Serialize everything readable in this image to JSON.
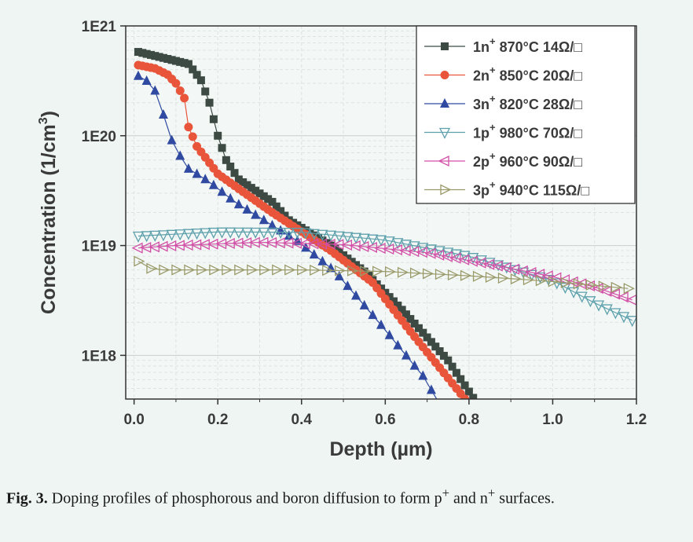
{
  "chart_data": {
    "type": "scatter",
    "xlabel": "Depth (µm)",
    "ylabel_main": "Concentration (1/cm",
    "ylabel_sup": "3",
    "ylabel_close": ")",
    "yscale": "log",
    "xlim": [
      -0.02,
      1.2
    ],
    "ylim": [
      4e+17,
      1e+21
    ],
    "xticks": [
      0.0,
      0.2,
      0.4,
      0.6,
      0.8,
      1.0,
      1.2
    ],
    "xtick_labels": [
      "0.0",
      "0.2",
      "0.4",
      "0.6",
      "0.8",
      "1.0",
      "1.2"
    ],
    "yticks": [
      1e+18,
      1e+19,
      1e+20,
      1e+21
    ],
    "ytick_labels": [
      "1E18",
      "1E19",
      "1E20",
      "1E21"
    ],
    "grid": true,
    "legend_position": "top-right",
    "series": [
      {
        "name": "1n",
        "sup": "+",
        "temp": "870°C",
        "sheet": "14Ω/□",
        "color": "#3d4a44",
        "marker": "square",
        "step": 0.01,
        "points": [
          [
            0.01,
            5.8e+20
          ],
          [
            0.1,
            4.8e+20
          ],
          [
            0.13,
            4.5e+20
          ],
          [
            0.16,
            3.2e+20
          ],
          [
            0.18,
            2e+20
          ],
          [
            0.2,
            1e+20
          ],
          [
            0.22,
            6e+19
          ],
          [
            0.25,
            4e+19
          ],
          [
            0.33,
            2.5e+19
          ],
          [
            0.37,
            1.7e+19
          ],
          [
            0.47,
            1e+19
          ],
          [
            0.55,
            5.8e+18
          ],
          [
            0.64,
            2.6e+18
          ],
          [
            0.75,
            9e+17
          ],
          [
            0.82,
            3.6e+17
          ]
        ]
      },
      {
        "name": "2n",
        "sup": "+",
        "temp": "850°C",
        "sheet": "20Ω/□",
        "color": "#e8553a",
        "marker": "circle",
        "step": 0.01,
        "points": [
          [
            0.01,
            4.4e+20
          ],
          [
            0.05,
            4.1e+20
          ],
          [
            0.08,
            3.6e+20
          ],
          [
            0.1,
            3e+20
          ],
          [
            0.12,
            2.2e+20
          ],
          [
            0.13,
            1.2e+20
          ],
          [
            0.15,
            8e+19
          ],
          [
            0.2,
            4.5e+19
          ],
          [
            0.24,
            3.5e+19
          ],
          [
            0.33,
            2e+19
          ],
          [
            0.38,
            1.5e+19
          ],
          [
            0.47,
            9e+18
          ],
          [
            0.57,
            4.6e+18
          ],
          [
            0.66,
            1.65e+18
          ],
          [
            0.77,
            5e+17
          ],
          [
            0.8,
            3.6e+17
          ]
        ]
      },
      {
        "name": "3n",
        "sup": "+",
        "temp": "820°C",
        "sheet": "28Ω/□",
        "color": "#2f4aa0",
        "marker": "triangle-up",
        "step": 0.02,
        "points": [
          [
            0.01,
            3.5e+20
          ],
          [
            0.04,
            3e+20
          ],
          [
            0.06,
            2.2e+20
          ],
          [
            0.08,
            1.1e+20
          ],
          [
            0.1,
            7.5e+19
          ],
          [
            0.13,
            5e+19
          ],
          [
            0.18,
            3.8e+19
          ],
          [
            0.24,
            2.5e+19
          ],
          [
            0.3,
            1.8e+19
          ],
          [
            0.39,
            1.1e+19
          ],
          [
            0.48,
            5.8e+18
          ],
          [
            0.58,
            2.1e+18
          ],
          [
            0.69,
            6.5e+17
          ],
          [
            0.73,
            3.6e+17
          ]
        ]
      },
      {
        "name": "1p",
        "sup": "+",
        "temp": "980°C",
        "sheet": "70Ω/□",
        "color": "#5da0ac",
        "marker": "triangle-down",
        "step": 0.02,
        "points": [
          [
            0.01,
            1.22e+19
          ],
          [
            0.2,
            1.33e+19
          ],
          [
            0.4,
            1.32e+19
          ],
          [
            0.6,
            1.12e+19
          ],
          [
            0.8,
            8e+18
          ],
          [
            1.0,
            4.8e+18
          ],
          [
            1.1,
            3e+18
          ],
          [
            1.2,
            2e+18
          ]
        ]
      },
      {
        "name": "2p",
        "sup": "+",
        "temp": "960°C",
        "sheet": "90Ω/□",
        "color": "#d24fa6",
        "marker": "triangle-left",
        "step": 0.02,
        "points": [
          [
            0.01,
            9.5e+18
          ],
          [
            0.1,
            1e+19
          ],
          [
            0.3,
            1.07e+19
          ],
          [
            0.5,
            1.02e+19
          ],
          [
            0.7,
            8.6e+18
          ],
          [
            0.9,
            6.2e+18
          ],
          [
            1.0,
            5.2e+18
          ],
          [
            1.1,
            4.2e+18
          ],
          [
            1.2,
            3.1e+18
          ]
        ]
      },
      {
        "name": "3p",
        "sup": "+",
        "temp": "940°C",
        "sheet": "115Ω/□",
        "color": "#9a9a6a",
        "marker": "triangle-right",
        "step": 0.03,
        "points": [
          [
            0.01,
            7.2e+18
          ],
          [
            0.02,
            6.6e+18
          ],
          [
            0.05,
            6e+18
          ],
          [
            0.2,
            6e+18
          ],
          [
            0.4,
            6e+18
          ],
          [
            0.6,
            5.8e+18
          ],
          [
            0.8,
            5.3e+18
          ],
          [
            1.0,
            4.7e+18
          ],
          [
            1.2,
            4e+18
          ]
        ]
      }
    ]
  },
  "caption": {
    "label": "Fig. 3.",
    "text_a": " Doping profiles of phosphorous and boron diffusion to form p",
    "sup_a": "+",
    "text_b": " and n",
    "sup_b": "+",
    "text_c": " surfaces."
  }
}
